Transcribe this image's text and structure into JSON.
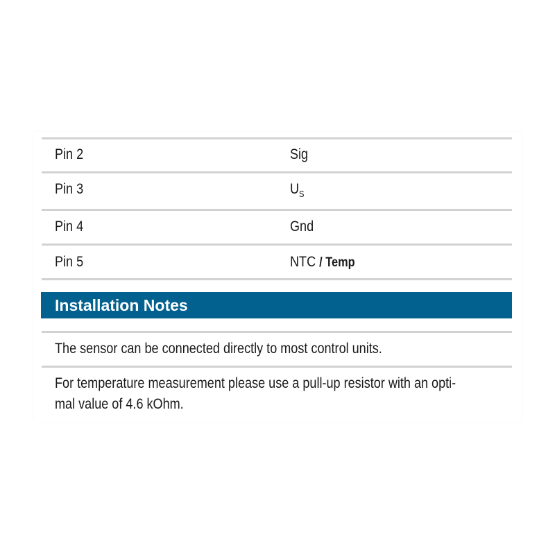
{
  "pin_table": {
    "rows": [
      {
        "pin": "Pin 2",
        "signal": "Sig"
      },
      {
        "pin": "Pin 3",
        "signal": "U",
        "signal_sub": "S"
      },
      {
        "pin": "Pin 4",
        "signal": "Gnd"
      },
      {
        "pin": "Pin 5",
        "signal": "NTC",
        "signal_extra": "/ Temp"
      }
    ]
  },
  "installation_notes": {
    "title": "Installation Notes",
    "notes": [
      "The sensor can be connected directly to most control units.",
      "For temperature measurement please use a pull-up resistor with an opti-",
      "mal value of 4.6 kOhm."
    ]
  },
  "colors": {
    "header_bg": "#02618f",
    "divider": "#d2d2d2"
  }
}
